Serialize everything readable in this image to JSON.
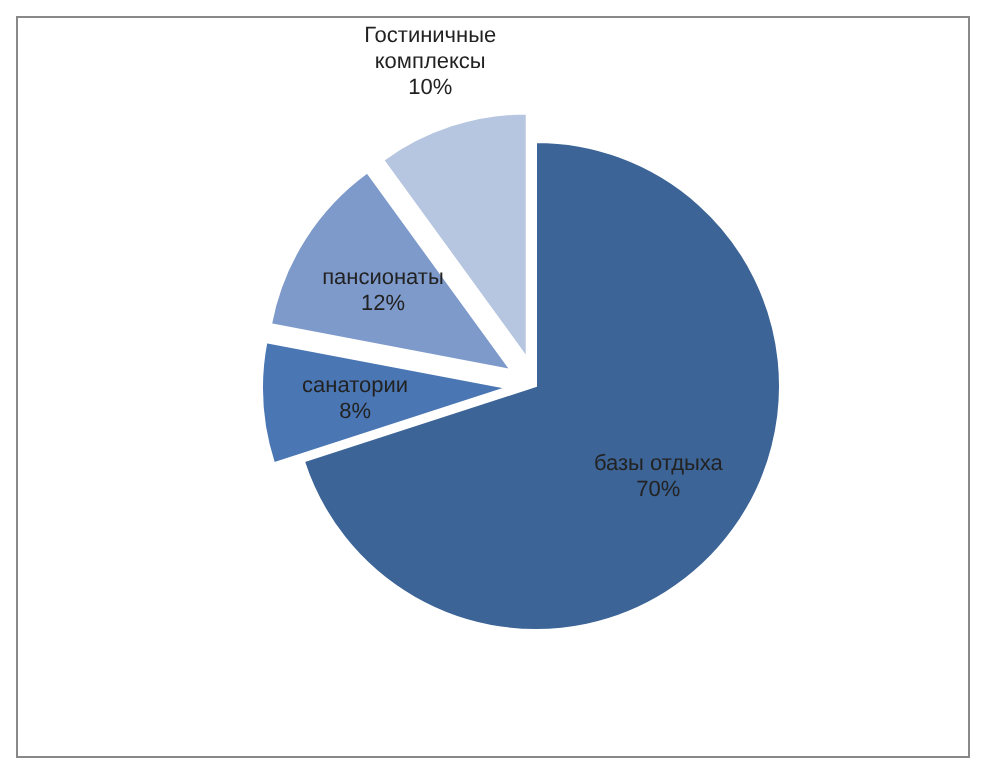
{
  "chart_data": {
    "type": "pie",
    "categories": [
      "базы отдыха",
      "санатории",
      "пансионаты",
      "Гостиничные комплексы"
    ],
    "values": [
      70,
      8,
      12,
      10
    ],
    "colors": [
      "#3c6496",
      "#4a77b4",
      "#7e9acb",
      "#b6c5e0"
    ],
    "value_labels": [
      "70%",
      "8%",
      "12%",
      "10%"
    ]
  }
}
